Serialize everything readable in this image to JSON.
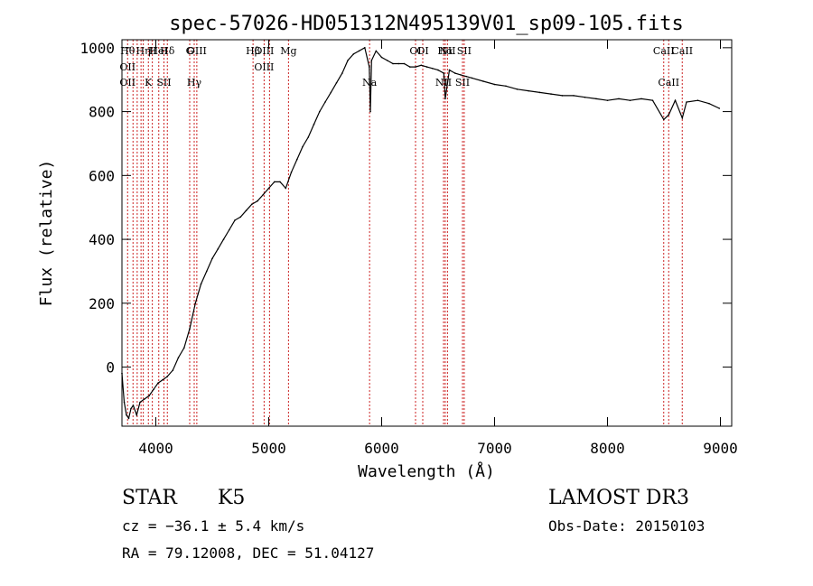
{
  "chart_data": {
    "type": "line",
    "title": "spec-57026-HD051312N495139V01_sp09-105.fits",
    "xlabel": "Wavelength (Å)",
    "ylabel": "Flux (relative)",
    "xlim": [
      3700,
      9100
    ],
    "ylim": [
      -185,
      1025
    ],
    "xticks": [
      4000,
      5000,
      6000,
      7000,
      8000,
      9000
    ],
    "yticks": [
      0,
      200,
      400,
      600,
      800,
      1000
    ],
    "grid": false,
    "line_color": "#000000",
    "marker_color": "#cc2222",
    "series": [
      {
        "x": [
          3700,
          3720,
          3740,
          3760,
          3780,
          3800,
          3830,
          3860,
          3900,
          3940,
          3980,
          4020,
          4060,
          4100,
          4150,
          4200,
          4250,
          4300,
          4350,
          4400,
          4450,
          4500,
          4550,
          4600,
          4650,
          4700,
          4750,
          4800,
          4850,
          4900,
          4950,
          5000,
          5050,
          5100,
          5150,
          5200,
          5250,
          5300,
          5350,
          5400,
          5450,
          5500,
          5550,
          5600,
          5650,
          5700,
          5750,
          5800,
          5850,
          5890,
          5900,
          5910,
          5950,
          6000,
          6050,
          6100,
          6150,
          6200,
          6250,
          6300,
          6350,
          6400,
          6450,
          6500,
          6550,
          6563,
          6600,
          6650,
          6700,
          6750,
          6800,
          6900,
          7000,
          7100,
          7200,
          7300,
          7400,
          7500,
          7600,
          7700,
          7800,
          7900,
          8000,
          8100,
          8200,
          8300,
          8400,
          8498,
          8542,
          8600,
          8662,
          8700,
          8800,
          8900,
          8990
        ],
        "y": [
          -20,
          -110,
          -150,
          -160,
          -130,
          -120,
          -150,
          -110,
          -100,
          -90,
          -70,
          -50,
          -40,
          -30,
          -10,
          30,
          60,
          120,
          200,
          260,
          300,
          340,
          370,
          400,
          430,
          460,
          470,
          490,
          510,
          520,
          540,
          560,
          580,
          580,
          560,
          610,
          650,
          690,
          720,
          760,
          800,
          830,
          860,
          890,
          920,
          960,
          980,
          990,
          1000,
          940,
          800,
          960,
          990,
          970,
          960,
          950,
          950,
          950,
          940,
          940,
          945,
          940,
          935,
          930,
          920,
          840,
          930,
          920,
          915,
          910,
          905,
          895,
          885,
          880,
          870,
          865,
          860,
          855,
          850,
          850,
          845,
          840,
          835,
          840,
          835,
          840,
          835,
          775,
          790,
          835,
          780,
          830,
          835,
          825,
          810
        ]
      }
    ],
    "line_markers": [
      {
        "x": 3750,
        "lines": [
          "Hθ",
          "OII",
          "OII"
        ]
      },
      {
        "x": 3798
      },
      {
        "x": 3835
      },
      {
        "x": 3869
      },
      {
        "x": 3889,
        "lines": [
          "Hη"
        ]
      },
      {
        "x": 3934,
        "lines": [
          "K"
        ]
      },
      {
        "x": 3969,
        "lines": [
          "H"
        ]
      },
      {
        "x": 4026,
        "lines": [
          "HeI"
        ]
      },
      {
        "x": 4072,
        "lines": [
          "SII"
        ]
      },
      {
        "x": 4102,
        "lines": [
          "Hδ"
        ]
      },
      {
        "x": 4300,
        "lines": [
          "G"
        ]
      },
      {
        "x": 4340,
        "lines": [
          "Hγ"
        ]
      },
      {
        "x": 4363,
        "lines": [
          "OIII"
        ]
      },
      {
        "x": 4861,
        "lines": [
          "Hβ"
        ]
      },
      {
        "x": 4959,
        "lines": [
          "OIII",
          "OIII"
        ]
      },
      {
        "x": 5007
      },
      {
        "x": 5175,
        "lines": [
          "Mg"
        ]
      },
      {
        "x": 5893,
        "lines": [
          "Na"
        ]
      },
      {
        "x": 6300,
        "lines": [
          "OI"
        ]
      },
      {
        "x": 6364,
        "lines": [
          "OI"
        ]
      },
      {
        "x": 6548,
        "lines": [
          "NII"
        ]
      },
      {
        "x": 6563,
        "lines": [
          "Hα"
        ]
      },
      {
        "x": 6583,
        "lines": [
          "NII"
        ]
      },
      {
        "x": 6716,
        "lines": [
          "SII"
        ]
      },
      {
        "x": 6731,
        "lines": [
          "SII"
        ]
      },
      {
        "x": 8498,
        "lines": [
          "CaII"
        ]
      },
      {
        "x": 8542,
        "lines": [
          "CaII"
        ]
      },
      {
        "x": 8662,
        "lines": [
          "CaII"
        ]
      }
    ]
  },
  "info": {
    "object_type": "STAR",
    "subclass": "K5",
    "survey": "LAMOST DR3",
    "cz": "cz = −36.1 ± 5.4 km/s",
    "obs_date": "Obs-Date: 20150103",
    "coords": "RA =  79.12008, DEC =  51.04127"
  }
}
